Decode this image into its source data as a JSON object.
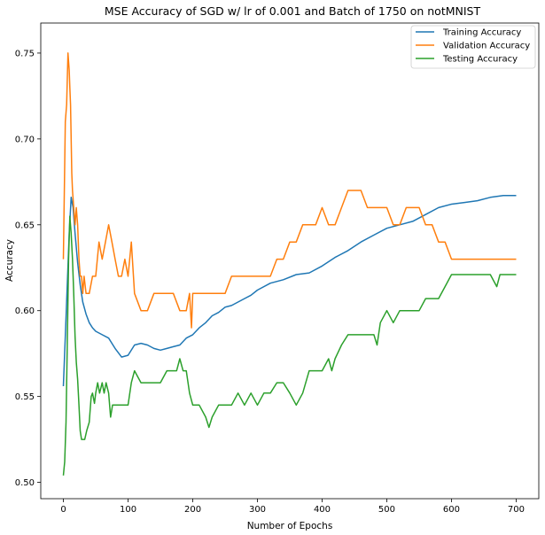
{
  "chart_data": {
    "type": "line",
    "title": "MSE Accuracy of SGD w/ lr of 0.001 and Batch of 1750 on notMNIST",
    "xlabel": "Number of Epochs",
    "ylabel": "Accuracy",
    "xlim": [
      -35,
      735
    ],
    "ylim": [
      0.4905,
      0.7675
    ],
    "xticks": [
      0,
      100,
      200,
      300,
      400,
      500,
      600,
      700
    ],
    "yticks": [
      0.5,
      0.55,
      0.6,
      0.65,
      0.7,
      0.75
    ],
    "xtick_labels": [
      "0",
      "100",
      "200",
      "300",
      "400",
      "500",
      "600",
      "700"
    ],
    "ytick_labels": [
      "0.50",
      "0.55",
      "0.60",
      "0.65",
      "0.70",
      "0.75"
    ],
    "grid": false,
    "legend_position": "top-right",
    "series": [
      {
        "name": "Training Accuracy",
        "color": "#1f77b4",
        "x": [
          0,
          3,
          6,
          9,
          12,
          15,
          18,
          22,
          26,
          30,
          35,
          40,
          45,
          50,
          60,
          70,
          80,
          90,
          100,
          110,
          120,
          130,
          140,
          150,
          160,
          170,
          180,
          190,
          200,
          210,
          220,
          230,
          240,
          250,
          260,
          270,
          280,
          290,
          300,
          320,
          340,
          360,
          380,
          400,
          420,
          440,
          460,
          480,
          500,
          520,
          540,
          560,
          580,
          600,
          620,
          640,
          660,
          680,
          700
        ],
        "y": [
          0.556,
          0.585,
          0.615,
          0.645,
          0.666,
          0.66,
          0.645,
          0.628,
          0.615,
          0.605,
          0.598,
          0.593,
          0.59,
          0.588,
          0.586,
          0.584,
          0.578,
          0.573,
          0.574,
          0.58,
          0.581,
          0.58,
          0.578,
          0.577,
          0.578,
          0.579,
          0.58,
          0.584,
          0.586,
          0.59,
          0.593,
          0.597,
          0.599,
          0.602,
          0.603,
          0.605,
          0.607,
          0.609,
          0.612,
          0.616,
          0.618,
          0.621,
          0.622,
          0.626,
          0.631,
          0.635,
          0.64,
          0.644,
          0.648,
          0.65,
          0.652,
          0.656,
          0.66,
          0.662,
          0.663,
          0.664,
          0.666,
          0.667,
          0.667
        ]
      },
      {
        "name": "Validation Accuracy",
        "color": "#ff7f0e",
        "x": [
          0,
          3,
          5,
          7,
          9,
          10,
          11,
          12,
          13,
          14,
          16,
          18,
          20,
          22,
          24,
          26,
          28,
          30,
          32,
          35,
          40,
          45,
          50,
          55,
          60,
          65,
          70,
          75,
          80,
          85,
          90,
          95,
          100,
          105,
          110,
          120,
          130,
          140,
          150,
          160,
          170,
          180,
          190,
          195,
          198,
          200,
          205,
          210,
          220,
          230,
          240,
          250,
          260,
          270,
          280,
          290,
          300,
          310,
          320,
          330,
          340,
          350,
          360,
          370,
          380,
          390,
          400,
          410,
          420,
          430,
          440,
          450,
          460,
          470,
          480,
          490,
          500,
          510,
          520,
          530,
          540,
          550,
          560,
          570,
          580,
          590,
          600,
          620,
          640,
          660,
          680,
          700
        ],
        "y": [
          0.63,
          0.71,
          0.72,
          0.75,
          0.74,
          0.73,
          0.72,
          0.7,
          0.68,
          0.67,
          0.66,
          0.65,
          0.66,
          0.65,
          0.63,
          0.62,
          0.62,
          0.61,
          0.62,
          0.61,
          0.61,
          0.62,
          0.62,
          0.64,
          0.63,
          0.64,
          0.65,
          0.64,
          0.63,
          0.62,
          0.62,
          0.63,
          0.62,
          0.64,
          0.61,
          0.6,
          0.6,
          0.61,
          0.61,
          0.61,
          0.61,
          0.6,
          0.6,
          0.61,
          0.59,
          0.61,
          0.61,
          0.61,
          0.61,
          0.61,
          0.61,
          0.61,
          0.62,
          0.62,
          0.62,
          0.62,
          0.62,
          0.62,
          0.62,
          0.63,
          0.63,
          0.64,
          0.64,
          0.65,
          0.65,
          0.65,
          0.66,
          0.65,
          0.65,
          0.66,
          0.67,
          0.67,
          0.67,
          0.66,
          0.66,
          0.66,
          0.66,
          0.65,
          0.65,
          0.66,
          0.66,
          0.66,
          0.65,
          0.65,
          0.64,
          0.64,
          0.63,
          0.63,
          0.63,
          0.63,
          0.63,
          0.63
        ]
      },
      {
        "name": "Testing Accuracy",
        "color": "#2ca02c",
        "x": [
          0,
          2,
          4,
          6,
          8,
          10,
          12,
          14,
          16,
          18,
          20,
          22,
          24,
          26,
          28,
          30,
          33,
          36,
          40,
          43,
          45,
          48,
          50,
          53,
          56,
          60,
          63,
          66,
          70,
          73,
          76,
          80,
          85,
          90,
          100,
          105,
          110,
          120,
          130,
          140,
          150,
          160,
          170,
          175,
          180,
          185,
          190,
          195,
          200,
          210,
          220,
          225,
          230,
          240,
          250,
          260,
          270,
          280,
          290,
          300,
          310,
          320,
          330,
          340,
          350,
          360,
          370,
          380,
          390,
          400,
          410,
          415,
          420,
          430,
          440,
          450,
          460,
          470,
          480,
          485,
          490,
          500,
          510,
          520,
          530,
          540,
          550,
          560,
          570,
          580,
          590,
          600,
          620,
          640,
          660,
          670,
          675,
          680,
          700
        ],
        "y": [
          0.504,
          0.512,
          0.535,
          0.58,
          0.63,
          0.655,
          0.645,
          0.63,
          0.61,
          0.585,
          0.57,
          0.56,
          0.545,
          0.53,
          0.525,
          0.525,
          0.525,
          0.53,
          0.535,
          0.55,
          0.552,
          0.546,
          0.552,
          0.558,
          0.552,
          0.558,
          0.552,
          0.558,
          0.552,
          0.538,
          0.545,
          0.545,
          0.545,
          0.545,
          0.545,
          0.558,
          0.565,
          0.558,
          0.558,
          0.558,
          0.558,
          0.565,
          0.565,
          0.565,
          0.572,
          0.565,
          0.565,
          0.552,
          0.545,
          0.545,
          0.538,
          0.532,
          0.538,
          0.545,
          0.545,
          0.545,
          0.552,
          0.545,
          0.552,
          0.545,
          0.552,
          0.552,
          0.558,
          0.558,
          0.552,
          0.545,
          0.552,
          0.565,
          0.565,
          0.565,
          0.572,
          0.565,
          0.572,
          0.58,
          0.586,
          0.586,
          0.586,
          0.586,
          0.586,
          0.58,
          0.593,
          0.6,
          0.593,
          0.6,
          0.6,
          0.6,
          0.6,
          0.607,
          0.607,
          0.607,
          0.614,
          0.621,
          0.621,
          0.621,
          0.621,
          0.614,
          0.621,
          0.621,
          0.621
        ]
      }
    ]
  }
}
